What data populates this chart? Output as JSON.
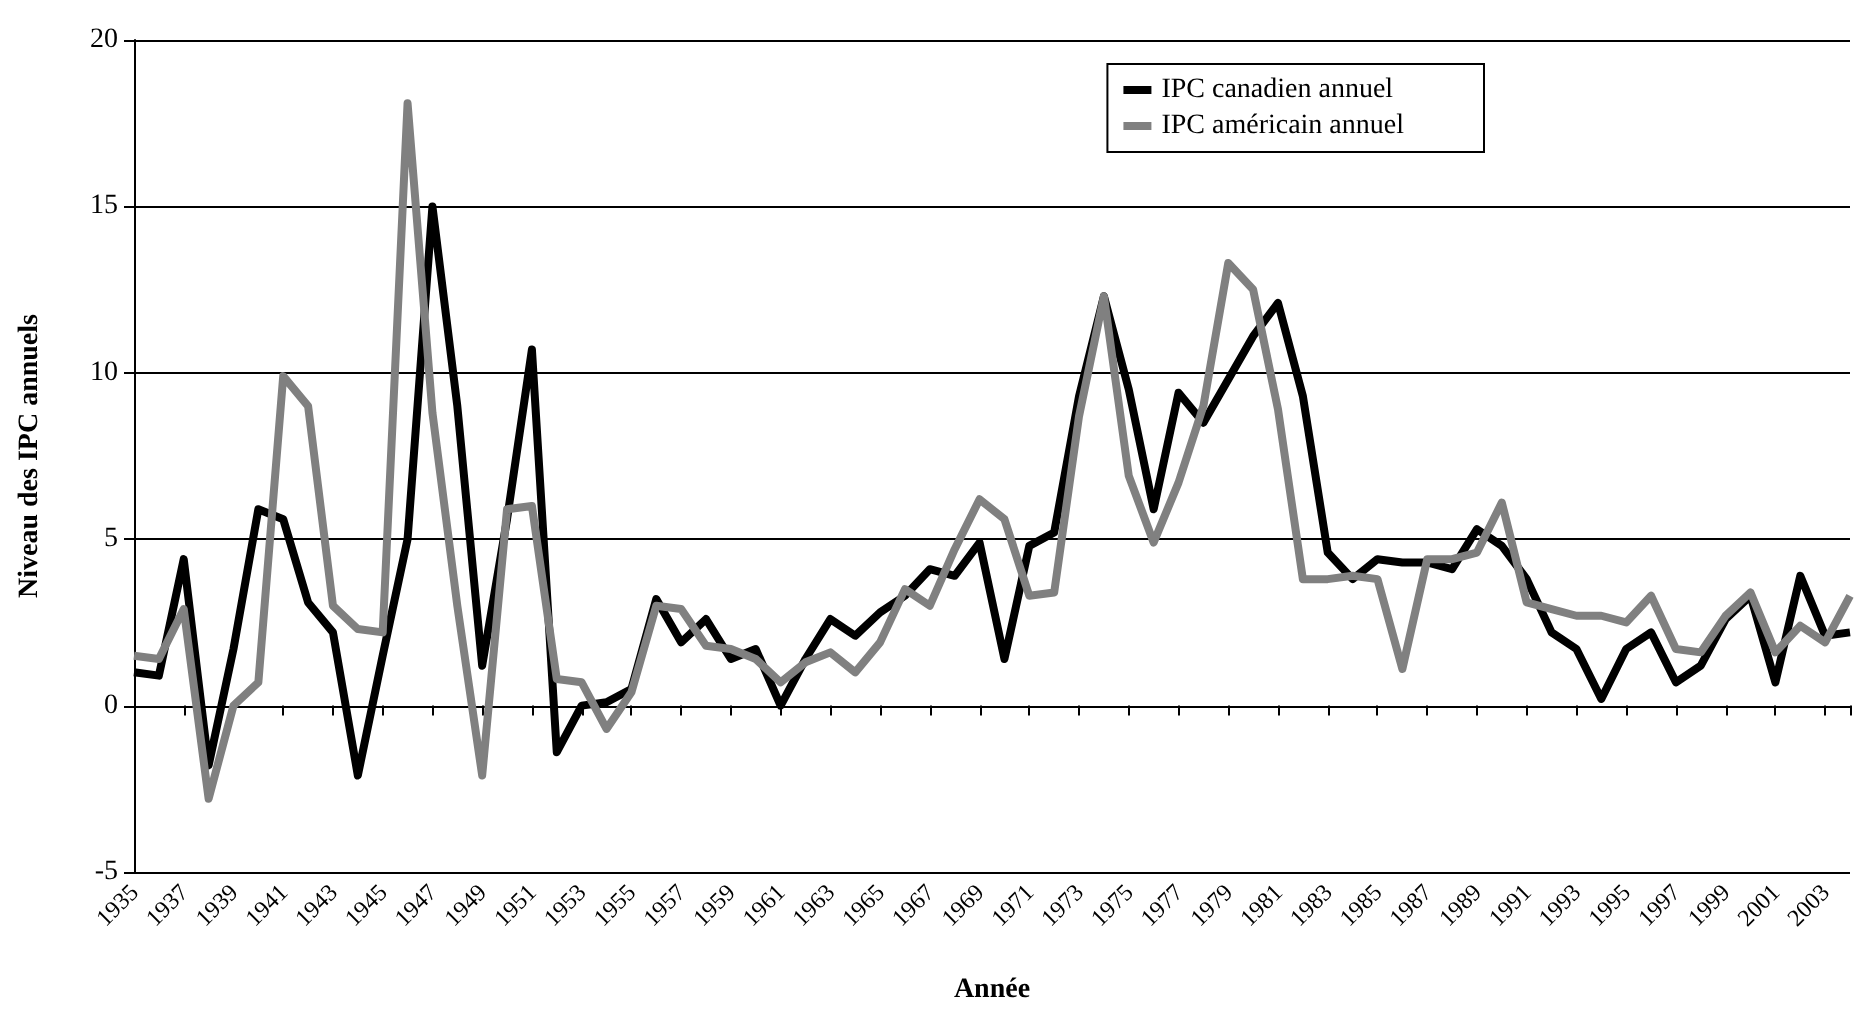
{
  "chart_data": {
    "type": "line",
    "xlabel": "Année",
    "ylabel": "Niveau des IPC annuels",
    "categories": [
      "1935",
      null,
      "1937",
      null,
      "1939",
      null,
      "1941",
      null,
      "1943",
      null,
      "1945",
      null,
      "1947",
      null,
      "1949",
      null,
      "1951",
      null,
      "1953",
      null,
      "1955",
      null,
      "1957",
      null,
      "1959",
      null,
      "1961",
      null,
      "1963",
      null,
      "1965",
      null,
      "1967",
      null,
      "1969",
      null,
      "1971",
      null,
      "1973",
      null,
      "1975",
      null,
      "1977",
      null,
      "1979",
      null,
      "1981",
      null,
      "1983",
      null,
      "1985",
      null,
      "1987",
      null,
      "1989",
      null,
      "1991",
      null,
      "1993",
      null,
      "1995",
      null,
      "1997",
      null,
      "1999",
      null,
      "2001",
      null,
      "2003",
      null
    ],
    "series": [
      {
        "name": "IPC canadien annuel",
        "color": "#000000",
        "values": [
          1.0,
          0.9,
          4.4,
          -1.8,
          1.7,
          5.9,
          5.6,
          3.1,
          2.2,
          -2.1,
          1.5,
          5.0,
          15.0,
          9.0,
          1.2,
          5.6,
          10.7,
          -1.4,
          0.0,
          0.1,
          0.5,
          3.2,
          1.9,
          2.6,
          1.4,
          1.7,
          0.0,
          1.4,
          2.6,
          2.1,
          2.8,
          3.3,
          4.1,
          3.9,
          4.9,
          1.4,
          4.8,
          5.2,
          9.3,
          12.3,
          9.5,
          5.9,
          9.4,
          8.5,
          9.8,
          11.1,
          12.1,
          9.3,
          4.6,
          3.8,
          4.4,
          4.3,
          4.3,
          4.1,
          5.3,
          4.8,
          3.8,
          2.2,
          1.7,
          0.2,
          1.7,
          2.2,
          0.7,
          1.2,
          2.6,
          3.3,
          0.7,
          3.9,
          2.1,
          2.2
        ]
      },
      {
        "name": "IPC américain annuel",
        "color": "#808080",
        "values": [
          1.5,
          1.4,
          2.9,
          -2.8,
          0.0,
          0.7,
          9.9,
          9.0,
          3.0,
          2.3,
          2.2,
          18.1,
          8.8,
          3.0,
          -2.1,
          5.9,
          6.0,
          0.8,
          0.7,
          -0.7,
          0.4,
          3.0,
          2.9,
          1.8,
          1.7,
          1.4,
          0.7,
          1.3,
          1.6,
          1.0,
          1.9,
          3.5,
          3.0,
          4.7,
          6.2,
          5.6,
          3.3,
          3.4,
          8.7,
          12.3,
          6.9,
          4.9,
          6.7,
          9.0,
          13.3,
          12.5,
          8.9,
          3.8,
          3.8,
          3.9,
          3.8,
          1.1,
          4.4,
          4.4,
          4.6,
          6.1,
          3.1,
          2.9,
          2.7,
          2.7,
          2.5,
          3.3,
          1.7,
          1.6,
          2.7,
          3.4,
          1.6,
          2.4,
          1.9,
          3.3
        ]
      }
    ],
    "ylim": [
      -5,
      20
    ],
    "yticks": [
      -5,
      0,
      5,
      10,
      15,
      20
    ],
    "grid": "y",
    "legend": "top right",
    "marker": "none",
    "line_style": "solid"
  }
}
